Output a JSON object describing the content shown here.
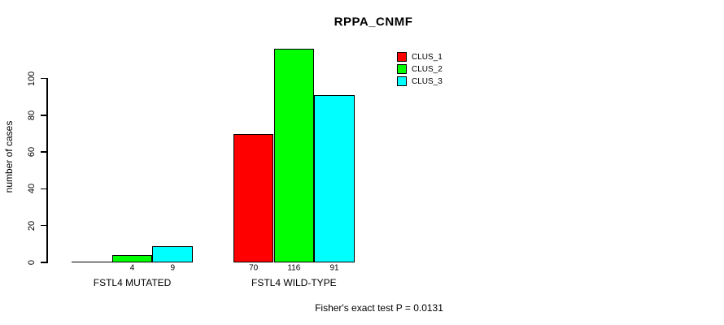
{
  "chart_data": {
    "type": "bar",
    "title": "RPPA_CNMF",
    "ylabel": "number of cases",
    "xlabel": "",
    "categories": [
      "FSTL4 MUTATED",
      "FSTL4 WILD-TYPE"
    ],
    "series": [
      {
        "name": "CLUS_1",
        "color": "#ff0000",
        "values": [
          0,
          70
        ]
      },
      {
        "name": "CLUS_2",
        "color": "#00ff00",
        "values": [
          4,
          116
        ]
      },
      {
        "name": "CLUS_3",
        "color": "#00ffff",
        "values": [
          9,
          91
        ]
      }
    ],
    "bar_labels": [
      [
        "",
        "4",
        "9"
      ],
      [
        "70",
        "116",
        "91"
      ]
    ],
    "y_ticks": [
      0,
      20,
      40,
      60,
      80,
      100
    ],
    "ylim": [
      0,
      116
    ],
    "grid": false,
    "legend_position": "top-right",
    "annotation": "Fisher's exact test P = 0.0131",
    "bar_edge_color": "#000000",
    "text_color": "#000000",
    "background_color": "#ffffff"
  }
}
